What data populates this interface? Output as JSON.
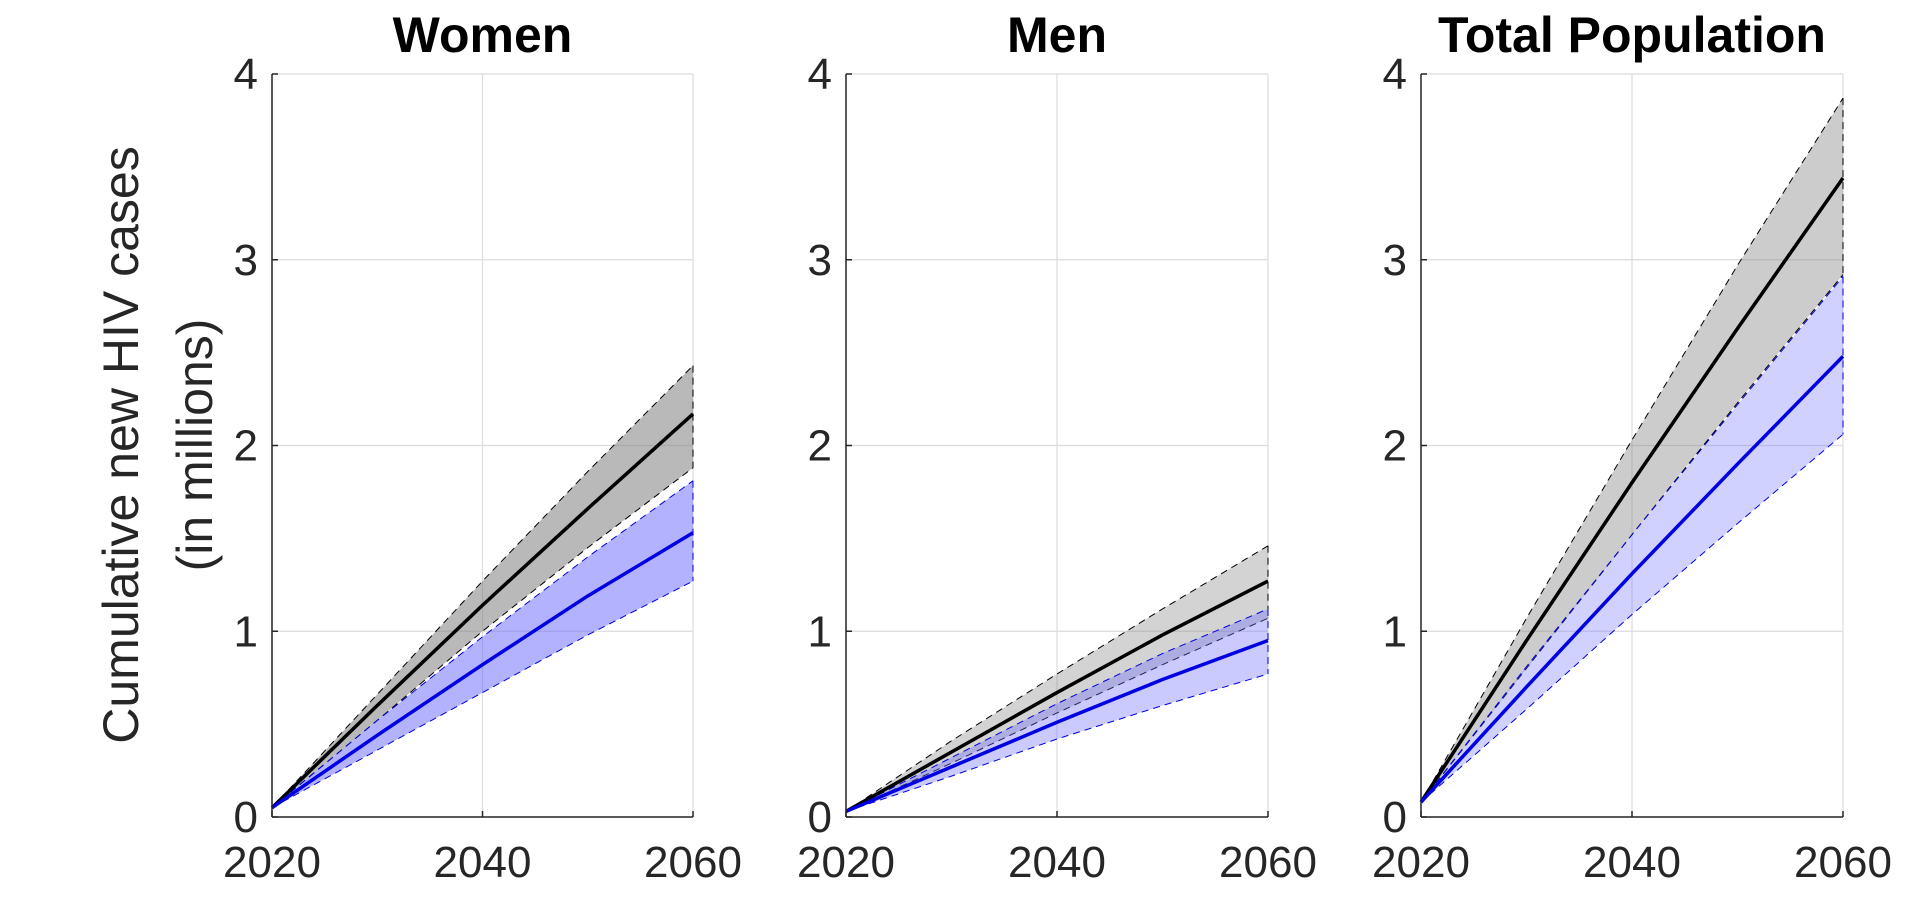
{
  "ylabel_lines": [
    "Cumulative new HIV cases",
    "(in millions)"
  ],
  "colors": {
    "black_line": "#000000",
    "black_band": "#808080",
    "blue_line": "#0000e0",
    "blue_band": "#6666ff"
  },
  "chart_data": [
    {
      "type": "line",
      "title": "Women",
      "xlim": [
        2020,
        2060
      ],
      "ylim": [
        0,
        4
      ],
      "xticks": [
        2020,
        2040,
        2060
      ],
      "yticks": [
        0,
        1,
        2,
        3,
        4
      ],
      "x": [
        2020,
        2030,
        2040,
        2050,
        2060
      ],
      "grid": true,
      "black_band_opacity": 0.55,
      "blue_band_opacity": 0.5,
      "series": [
        {
          "color": "black",
          "values": [
            0.05,
            0.6,
            1.14,
            1.66,
            2.17
          ],
          "lower": [
            0.05,
            0.52,
            1.0,
            1.45,
            1.88
          ],
          "upper": [
            0.05,
            0.66,
            1.27,
            1.86,
            2.43
          ]
        },
        {
          "color": "blue",
          "values": [
            0.05,
            0.44,
            0.82,
            1.19,
            1.53
          ],
          "lower": [
            0.05,
            0.36,
            0.67,
            0.98,
            1.27
          ],
          "upper": [
            0.05,
            0.52,
            0.97,
            1.4,
            1.81
          ]
        }
      ]
    },
    {
      "type": "line",
      "title": "Men",
      "xlim": [
        2020,
        2060
      ],
      "ylim": [
        0,
        4
      ],
      "xticks": [
        2020,
        2040,
        2060
      ],
      "yticks": [
        0,
        1,
        2,
        3,
        4
      ],
      "x": [
        2020,
        2030,
        2040,
        2050,
        2060
      ],
      "grid": true,
      "black_band_opacity": 0.35,
      "blue_band_opacity": 0.35,
      "series": [
        {
          "color": "black",
          "values": [
            0.03,
            0.35,
            0.67,
            0.98,
            1.27
          ],
          "lower": [
            0.03,
            0.29,
            0.56,
            0.82,
            1.07
          ],
          "upper": [
            0.03,
            0.41,
            0.77,
            1.12,
            1.46
          ]
        },
        {
          "color": "blue",
          "values": [
            0.03,
            0.27,
            0.51,
            0.74,
            0.95
          ],
          "lower": [
            0.03,
            0.22,
            0.42,
            0.6,
            0.77
          ],
          "upper": [
            0.03,
            0.32,
            0.61,
            0.88,
            1.12
          ]
        }
      ]
    },
    {
      "type": "line",
      "title": "Total Population",
      "xlim": [
        2020,
        2060
      ],
      "ylim": [
        0,
        4
      ],
      "xticks": [
        2020,
        2040,
        2060
      ],
      "yticks": [
        0,
        1,
        2,
        3,
        4
      ],
      "x": [
        2020,
        2030,
        2040,
        2050,
        2060
      ],
      "grid": true,
      "black_band_opacity": 0.4,
      "blue_band_opacity": 0.3,
      "series": [
        {
          "color": "black",
          "values": [
            0.08,
            0.95,
            1.8,
            2.63,
            3.44
          ],
          "lower": [
            0.08,
            0.8,
            1.52,
            2.23,
            2.92
          ],
          "upper": [
            0.08,
            1.07,
            2.03,
            2.97,
            3.87
          ]
        },
        {
          "color": "blue",
          "values": [
            0.08,
            0.7,
            1.31,
            1.9,
            2.48
          ],
          "lower": [
            0.08,
            0.58,
            1.09,
            1.58,
            2.06
          ],
          "upper": [
            0.08,
            0.81,
            1.52,
            2.22,
            2.91
          ]
        }
      ]
    }
  ]
}
